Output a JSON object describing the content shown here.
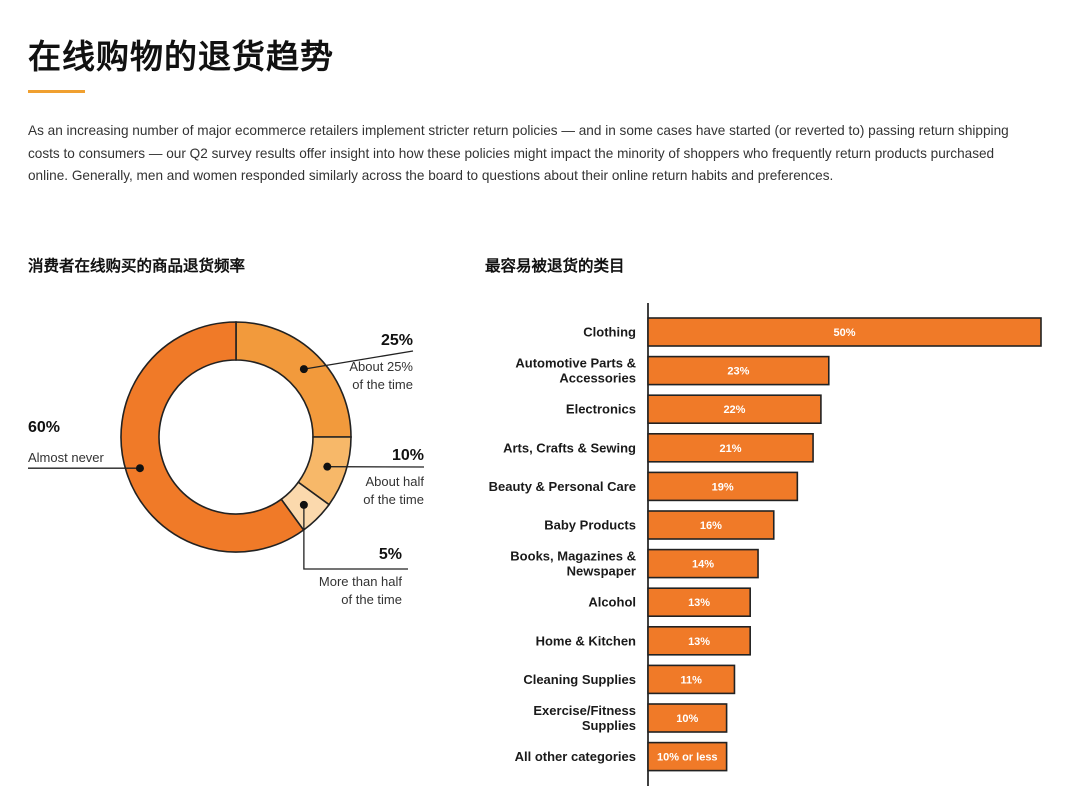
{
  "title": "在线购物的退货趋势",
  "intro": "As an increasing number of major ecommerce retailers implement stricter return policies — and in some cases have started (or reverted to) passing return shipping costs to consumers — our Q2 survey results offer insight into how these policies might impact the minority of shoppers who frequently return products purchased online. Generally, men and women responded similarly across the board to questions about their online return habits and preferences.",
  "colors": {
    "accent": "#f0a030",
    "bar": "#f07a28",
    "donut": [
      "#f29a3c",
      "#f7b869",
      "#fbd9ad",
      "#f07a28"
    ],
    "outline": "#222222"
  },
  "chart_data": [
    {
      "type": "pie",
      "title": "消费者在线购买的商品退货频率",
      "slices": [
        {
          "label": "About 25%\nof the time",
          "value": 25,
          "display": "25%"
        },
        {
          "label": "About half\nof the time",
          "value": 10,
          "display": "10%"
        },
        {
          "label": "More than half\nof the time",
          "value": 5,
          "display": "5%"
        },
        {
          "label": "Almost never",
          "value": 60,
          "display": "60%"
        }
      ]
    },
    {
      "type": "bar",
      "orientation": "horizontal",
      "title": "最容易被退货的类目",
      "categories": [
        "Clothing",
        "Automotive Parts &\nAccessories",
        "Electronics",
        "Arts, Crafts & Sewing",
        "Beauty & Personal Care",
        "Baby Products",
        "Books, Magazines &\nNewspaper",
        "Alcohol",
        "Home & Kitchen",
        "Cleaning Supplies",
        "Exercise/Fitness\nSupplies",
        "All other categories"
      ],
      "values": [
        50,
        23,
        22,
        21,
        19,
        16,
        14,
        13,
        13,
        11,
        10,
        10
      ],
      "data_labels": [
        "50%",
        "23%",
        "22%",
        "21%",
        "19%",
        "16%",
        "14%",
        "13%",
        "13%",
        "11%",
        "10%",
        "10% or less"
      ],
      "xlim": [
        0,
        50
      ]
    }
  ]
}
